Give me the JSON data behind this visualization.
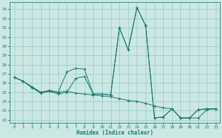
{
  "xlabel": "Humidex (Indice chaleur)",
  "background_color": "#cce8e4",
  "grid_color": "#99cccc",
  "line_color": "#1a7a70",
  "xlim": [
    -0.5,
    23.5
  ],
  "ylim": [
    21.7,
    34.8
  ],
  "xticks": [
    0,
    1,
    2,
    3,
    4,
    5,
    6,
    7,
    8,
    9,
    10,
    11,
    12,
    13,
    14,
    15,
    16,
    17,
    18,
    19,
    20,
    21,
    22,
    23
  ],
  "yticks": [
    22,
    23,
    24,
    25,
    26,
    27,
    28,
    29,
    30,
    31,
    32,
    33,
    34
  ],
  "curve1_x": [
    0,
    1,
    2,
    3,
    4,
    5,
    6,
    7,
    8,
    9,
    10,
    11,
    12,
    13,
    14,
    15,
    16,
    17,
    18,
    19,
    20,
    21,
    22,
    23
  ],
  "curve1_y": [
    26.6,
    26.2,
    25.5,
    25.0,
    25.1,
    25.0,
    27.2,
    27.6,
    27.5,
    24.8,
    24.8,
    24.7,
    32.0,
    29.6,
    34.2,
    32.2,
    22.2,
    22.3,
    23.2,
    22.2,
    22.2,
    23.1,
    23.2,
    23.2
  ],
  "curve2_x": [
    0,
    1,
    2,
    3,
    4,
    5,
    6,
    7,
    8,
    9,
    10,
    11,
    12,
    13,
    14,
    15,
    16,
    17,
    18,
    19,
    20,
    21,
    22,
    23
  ],
  "curve2_y": [
    26.6,
    26.2,
    25.5,
    24.9,
    25.1,
    24.8,
    25.0,
    26.5,
    26.7,
    24.8,
    24.8,
    24.7,
    32.0,
    29.6,
    34.2,
    32.2,
    22.2,
    22.3,
    23.2,
    22.2,
    22.2,
    23.1,
    23.2,
    23.2
  ],
  "curve3_x": [
    0,
    1,
    2,
    3,
    4,
    5,
    6,
    7,
    8,
    9,
    10,
    11,
    12,
    13,
    14,
    15,
    16,
    17,
    18,
    19,
    20,
    21,
    22,
    23
  ],
  "curve3_y": [
    26.6,
    26.2,
    25.6,
    25.0,
    25.2,
    25.0,
    25.1,
    24.9,
    24.8,
    24.7,
    24.6,
    24.5,
    24.3,
    24.1,
    24.0,
    23.8,
    23.5,
    23.3,
    23.2,
    22.2,
    22.2,
    22.2,
    23.1,
    23.2
  ]
}
